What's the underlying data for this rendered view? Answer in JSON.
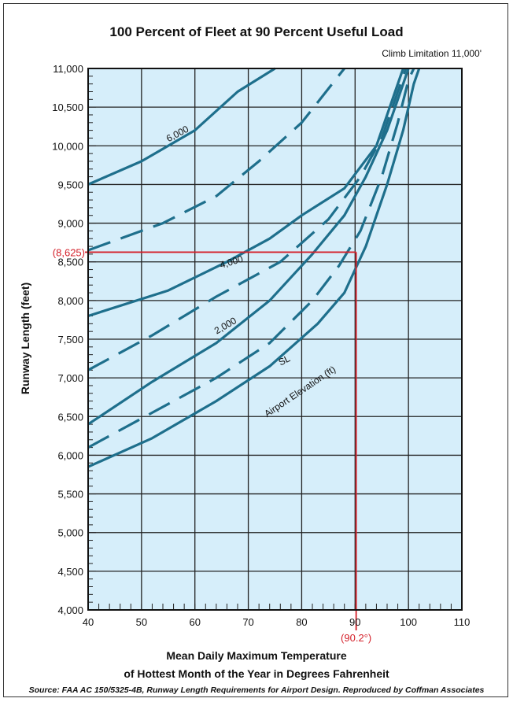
{
  "chart_data": {
    "type": "line",
    "title": "100 Percent of Fleet at 90 Percent Useful Load",
    "subtitle": "Climb Limitation 11,000'",
    "xlabel_line1": "Mean Daily Maximum Temperature",
    "xlabel_line2": "of Hottest Month of the Year in Degrees Fahrenheit",
    "ylabel": "Runway Length (feet)",
    "xlim": [
      40,
      110
    ],
    "ylim": [
      4000,
      11000
    ],
    "x_ticks": [
      "40",
      "50",
      "60",
      "70",
      "80",
      "90",
      "100",
      "110"
    ],
    "y_ticks": [
      "4,000",
      "4,500",
      "5,000",
      "5,500",
      "6,000",
      "6,500",
      "7,000",
      "7,500",
      "8,000",
      "8,500",
      "9,000",
      "9,500",
      "10,000",
      "10,500",
      "11,000"
    ],
    "grid": true,
    "colors": {
      "curve": "#1e6f8c",
      "plot_bg": "#d6eefa",
      "marker": "#d4202a"
    },
    "series": [
      {
        "name": "SL",
        "style": "solid",
        "x": [
          40,
          52,
          64,
          74,
          83,
          88,
          92,
          96,
          99,
          101,
          102
        ],
        "y": [
          5850,
          6220,
          6700,
          7150,
          7700,
          8100,
          8700,
          9500,
          10200,
          10800,
          11000
        ]
      },
      {
        "name": "",
        "style": "dashed",
        "x": [
          40,
          52,
          64,
          74,
          82,
          87,
          91,
          95,
          98,
          100,
          101
        ],
        "y": [
          6100,
          6550,
          7000,
          7450,
          8000,
          8450,
          8900,
          9600,
          10300,
          10850,
          11000
        ]
      },
      {
        "name": "2,000",
        "style": "solid",
        "x": [
          40,
          52,
          64,
          74,
          82,
          88,
          92,
          96,
          99,
          100
        ],
        "y": [
          6400,
          6950,
          7450,
          8000,
          8600,
          9100,
          9600,
          10200,
          10800,
          11000
        ]
      },
      {
        "name": "",
        "style": "dashed",
        "x": [
          40,
          52,
          64,
          76,
          85,
          91,
          95,
          98,
          99.5
        ],
        "y": [
          7100,
          7550,
          8050,
          8500,
          9050,
          9600,
          10100,
          10700,
          11000
        ]
      },
      {
        "name": "4,000",
        "style": "solid",
        "x": [
          40,
          55,
          66,
          74,
          80,
          88,
          94,
          97,
          99
        ],
        "y": [
          7800,
          8130,
          8500,
          8800,
          9100,
          9450,
          10000,
          10600,
          11000
        ]
      },
      {
        "name": "",
        "style": "dashed",
        "x": [
          40,
          54,
          64,
          72,
          80,
          88
        ],
        "y": [
          8650,
          9000,
          9350,
          9800,
          10300,
          11000
        ]
      },
      {
        "name": "6,000",
        "style": "solid",
        "x": [
          40,
          50,
          60,
          68,
          75
        ],
        "y": [
          9500,
          9800,
          10200,
          10700,
          11000
        ]
      }
    ],
    "annotations": {
      "elevation_label": "Airport Elevation (ft)",
      "marker": {
        "x": 90.2,
        "y": 8625,
        "x_label": "(90.2°)",
        "y_label": "(8,625)"
      }
    },
    "source": "Source: FAA AC 150/5325-4B, Runway Length Requirements for Airport Design. Reproduced by Coffman Associates"
  }
}
